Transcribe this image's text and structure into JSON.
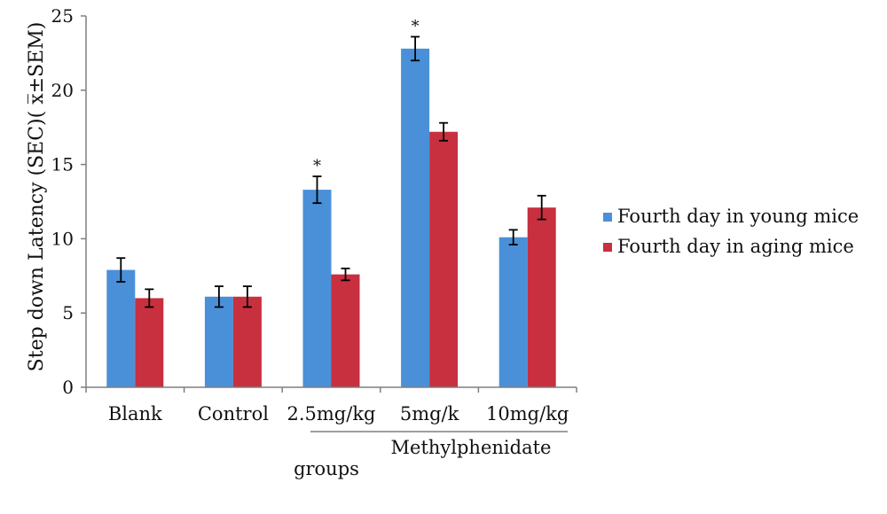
{
  "chart_data": {
    "type": "bar",
    "categories": [
      "Blank",
      "Control",
      "2.5mg/kg",
      "5mg/k",
      "10mg/kg"
    ],
    "series": [
      {
        "name": "Fourth day in young mice",
        "color": "#4a90d9",
        "values": [
          7.9,
          6.1,
          13.3,
          22.8,
          10.1
        ],
        "errors": [
          0.8,
          0.7,
          0.9,
          0.8,
          0.5
        ],
        "significance": [
          "",
          "",
          "*",
          "*",
          ""
        ]
      },
      {
        "name": "Fourth day in aging mice",
        "color": "#c8303f",
        "values": [
          6.0,
          6.1,
          7.6,
          17.2,
          12.1
        ],
        "errors": [
          0.6,
          0.7,
          0.4,
          0.6,
          0.8
        ],
        "significance": [
          "",
          "",
          "",
          "",
          ""
        ]
      }
    ],
    "ylabel": "Step down Latency (SEC)( x̅±SEM)",
    "xlabel": "groups",
    "group_label": "Methylphenidate",
    "ylim": [
      0,
      25
    ],
    "yticks": [
      0,
      5,
      10,
      15,
      20,
      25
    ],
    "grid": false,
    "legend_position": "right"
  }
}
